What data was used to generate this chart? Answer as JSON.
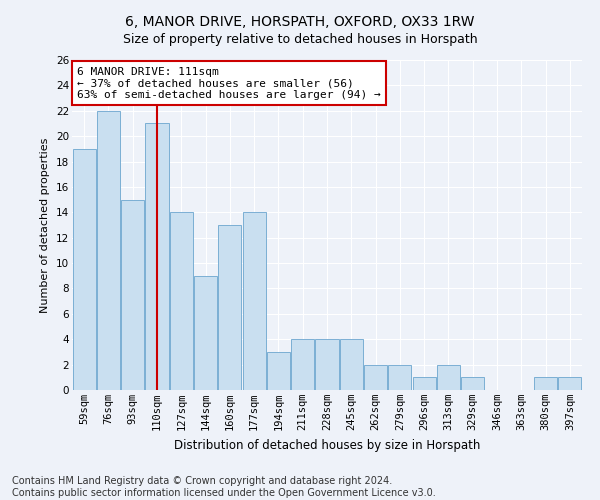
{
  "title": "6, MANOR DRIVE, HORSPATH, OXFORD, OX33 1RW",
  "subtitle": "Size of property relative to detached houses in Horspath",
  "xlabel": "Distribution of detached houses by size in Horspath",
  "ylabel": "Number of detached properties",
  "categories": [
    "59sqm",
    "76sqm",
    "93sqm",
    "110sqm",
    "127sqm",
    "144sqm",
    "160sqm",
    "177sqm",
    "194sqm",
    "211sqm",
    "228sqm",
    "245sqm",
    "262sqm",
    "279sqm",
    "296sqm",
    "313sqm",
    "329sqm",
    "346sqm",
    "363sqm",
    "380sqm",
    "397sqm"
  ],
  "values": [
    19,
    22,
    15,
    21,
    14,
    9,
    13,
    14,
    3,
    4,
    4,
    4,
    2,
    2,
    1,
    2,
    1,
    0,
    0,
    1,
    1
  ],
  "bar_color": "#c9dff0",
  "bar_edge_color": "#7bafd4",
  "highlight_index": 3,
  "highlight_line_color": "#cc0000",
  "annotation_box_color": "#ffffff",
  "annotation_box_edge": "#cc0000",
  "annotation_text": "6 MANOR DRIVE: 111sqm\n← 37% of detached houses are smaller (56)\n63% of semi-detached houses are larger (94) →",
  "ylim": [
    0,
    26
  ],
  "yticks": [
    0,
    2,
    4,
    6,
    8,
    10,
    12,
    14,
    16,
    18,
    20,
    22,
    24,
    26
  ],
  "footer1": "Contains HM Land Registry data © Crown copyright and database right 2024.",
  "footer2": "Contains public sector information licensed under the Open Government Licence v3.0.",
  "bg_color": "#eef2f9",
  "grid_color": "#ffffff",
  "title_fontsize": 10,
  "subtitle_fontsize": 9,
  "annotation_fontsize": 8,
  "ylabel_fontsize": 8,
  "xlabel_fontsize": 8.5,
  "footer_fontsize": 7,
  "tick_fontsize": 7.5
}
